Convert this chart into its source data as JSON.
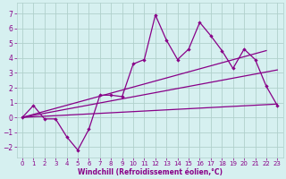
{
  "xlabel": "Windchill (Refroidissement éolien,°C)",
  "background_color": "#d6f0f0",
  "grid_color": "#b0d0cc",
  "line_color": "#880088",
  "xlim": [
    -0.5,
    23.5
  ],
  "ylim": [
    -2.7,
    7.7
  ],
  "xticks": [
    0,
    1,
    2,
    3,
    4,
    5,
    6,
    7,
    8,
    9,
    10,
    11,
    12,
    13,
    14,
    15,
    16,
    17,
    18,
    19,
    20,
    21,
    22,
    23
  ],
  "yticks": [
    -2,
    -1,
    0,
    1,
    2,
    3,
    4,
    5,
    6,
    7
  ],
  "main_series_x": [
    0,
    1,
    2,
    3,
    4,
    5,
    6,
    7,
    8,
    9,
    10,
    11,
    12,
    13,
    14,
    15,
    16,
    17,
    18,
    19,
    20,
    21,
    22,
    23
  ],
  "main_series_y": [
    0.0,
    0.8,
    -0.1,
    -0.1,
    -1.3,
    -2.2,
    -0.8,
    1.5,
    1.5,
    1.4,
    3.6,
    3.9,
    6.9,
    5.2,
    3.9,
    4.6,
    6.4,
    5.5,
    4.5,
    3.3,
    4.6,
    3.9,
    2.1,
    0.8
  ],
  "line1_x": [
    0,
    22
  ],
  "line1_y": [
    0.0,
    4.5
  ],
  "line2_x": [
    0,
    23
  ],
  "line2_y": [
    0.0,
    3.2
  ],
  "line3_x": [
    0,
    23
  ],
  "line3_y": [
    0.0,
    0.9
  ],
  "xtick_fontsize": 5.0,
  "ytick_fontsize": 5.5,
  "xlabel_fontsize": 5.5
}
